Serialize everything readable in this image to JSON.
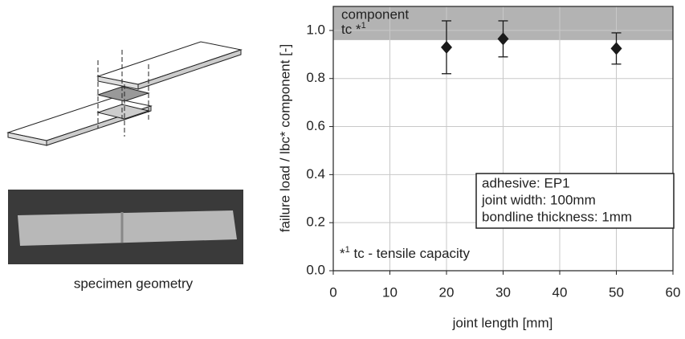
{
  "chart_data": {
    "type": "errorbar",
    "x_label": "joint length [mm]",
    "y_label": "failure load / lbc* component [-]",
    "x": [
      20,
      30,
      50
    ],
    "values": [
      0.93,
      0.965,
      0.925
    ],
    "errors": [
      0.11,
      0.075,
      0.065
    ],
    "color": "#1a1a1a",
    "xlim": [
      0,
      60
    ],
    "xticks": [
      0,
      10,
      20,
      30,
      40,
      50,
      60
    ],
    "ylim": [
      0,
      1.1
    ],
    "yticks": [
      {
        "value": 0,
        "label": "0.0"
      },
      0.2,
      0.4,
      0.6,
      0.8,
      {
        "value": 1,
        "label": "1.0"
      }
    ],
    "grid": true,
    "shaded_band": [
      0.96,
      1.1
    ],
    "band_color": "#b3b3b3",
    "band_label": [
      "component",
      "tc"
    ],
    "footnote_mark": "*",
    "footnote_number": "1",
    "footnote_text": "tc - tensile capacity",
    "info_box": [
      "adhesive: EP1",
      "joint width: 100mm",
      "bondline thickness: 1mm"
    ]
  },
  "figure_caption": "specimen geometry"
}
